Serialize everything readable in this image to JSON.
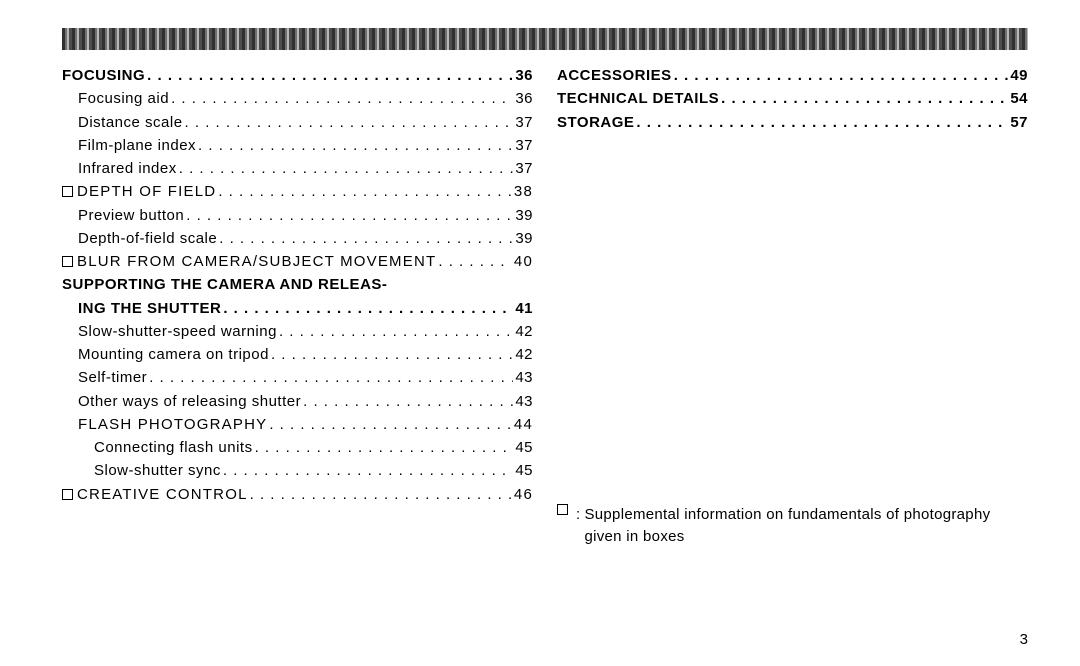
{
  "page_number": "3",
  "colors": {
    "text": "#000000",
    "background": "#ffffff",
    "decor_dark": "#3a3a3a",
    "decor_mid": "#777777",
    "decor_light": "#bbbbbb"
  },
  "typography": {
    "base_fontsize_pt": 11,
    "line_height": 1.55,
    "bold_weight": 700
  },
  "left_column": [
    {
      "label": "FOCUSING",
      "page": "36",
      "style": "lvl-bold-upper",
      "marker": false
    },
    {
      "label": "Focusing aid",
      "page": "36",
      "style": "lvl-sub",
      "marker": false
    },
    {
      "label": "Distance scale",
      "page": "37",
      "style": "lvl-sub",
      "marker": false
    },
    {
      "label": "Film-plane index",
      "page": "37",
      "style": "lvl-sub",
      "marker": false
    },
    {
      "label": "Infrared index",
      "page": "37",
      "style": "lvl-sub",
      "marker": false
    },
    {
      "label": "DEPTH OF FIELD",
      "page": "38",
      "style": "lvl-caps-plain",
      "marker": true
    },
    {
      "label": "Preview button",
      "page": "39",
      "style": "lvl-sub",
      "marker": false
    },
    {
      "label": "Depth-of-field scale",
      "page": "39",
      "style": "lvl-sub",
      "marker": false
    },
    {
      "label": "BLUR FROM CAMERA/SUBJECT MOVEMENT",
      "page": "40",
      "style": "lvl-caps-plain",
      "marker": true
    },
    {
      "label": "SUPPORTING THE CAMERA AND RELEAS-",
      "page": "",
      "style": "lvl-bold-upper",
      "marker": false,
      "continuation": true
    },
    {
      "label": "ING THE SHUTTER",
      "page": "41",
      "style": "lvl-bold-upper",
      "marker": false,
      "indent_override": 16
    },
    {
      "label": "Slow-shutter-speed warning",
      "page": "42",
      "style": "lvl-sub",
      "marker": false
    },
    {
      "label": "Mounting camera on tripod",
      "page": "42",
      "style": "lvl-sub",
      "marker": false
    },
    {
      "label": "Self-timer",
      "page": "43",
      "style": "lvl-sub",
      "marker": false
    },
    {
      "label": "Other ways of releasing shutter",
      "page": "43",
      "style": "lvl-sub",
      "marker": false
    },
    {
      "label": "FLASH PHOTOGRAPHY",
      "page": "44",
      "style": "lvl-subcaps",
      "marker": false
    },
    {
      "label": "Connecting flash units",
      "page": "45",
      "style": "lvl-subsub",
      "marker": false
    },
    {
      "label": "Slow-shutter sync",
      "page": "45",
      "style": "lvl-subsub",
      "marker": false
    },
    {
      "label": "CREATIVE CONTROL",
      "page": "46",
      "style": "lvl-caps-plain",
      "marker": true
    }
  ],
  "right_column": [
    {
      "label": "ACCESSORIES",
      "page": "49",
      "style": "lvl-bold-upper",
      "marker": false
    },
    {
      "label": "TECHNICAL DETAILS",
      "page": "54",
      "style": "lvl-bold-upper",
      "marker": false
    },
    {
      "label": "STORAGE",
      "page": "57",
      "style": "lvl-bold-upper",
      "marker": false
    }
  ],
  "footnote": {
    "symbol": "square",
    "text": "Supplemental information on fundamentals of photography given in boxes"
  }
}
